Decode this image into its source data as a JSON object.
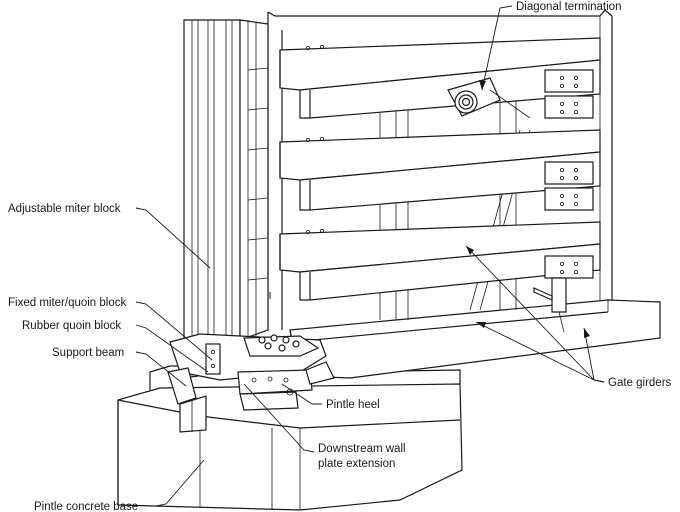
{
  "labels": {
    "diagonal_termination": "Diagonal termination",
    "adjustable_miter_block": "Adjustable miter block",
    "fixed_miter_quoin_block": "Fixed miter/quoin block",
    "rubber_quoin_block": "Rubber quoin block",
    "support_beam": "Support beam",
    "pintle_heel": "Pintle heel",
    "downstream_wall_line1": "Downstream wall",
    "downstream_wall_line2": "plate extension",
    "gate_girders": "Gate girders",
    "pintle_concrete_base": "Pintle concrete base"
  }
}
